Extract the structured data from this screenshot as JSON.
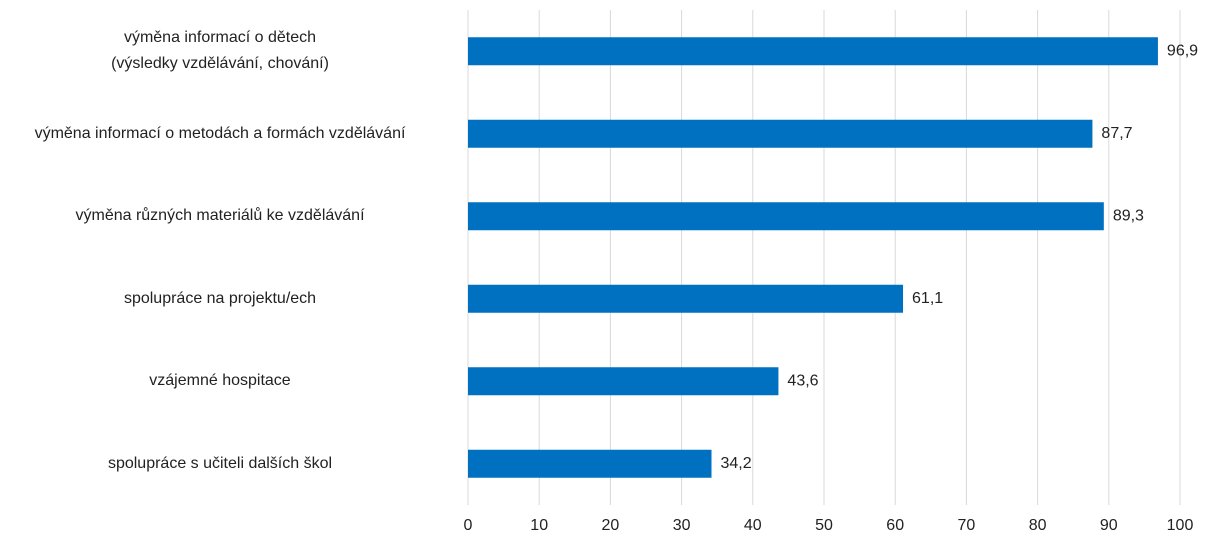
{
  "chart_data": {
    "type": "bar",
    "orientation": "horizontal",
    "categories": [
      "výměna informací o dětech\n(výsledky vzdělávání, chování)",
      "výměna informací o metodách a formách vzdělávání",
      "výměna různých materiálů ke vzdělávání",
      "spolupráce na projektu/ech",
      "vzájemné hospitace",
      "spolupráce s učiteli dalších škol"
    ],
    "values": [
      96.9,
      87.7,
      89.3,
      61.1,
      43.6,
      34.2
    ],
    "value_labels": [
      "96,9",
      "87,7",
      "89,3",
      "61,1",
      "43,6",
      "34,2"
    ],
    "color": "#0070c0",
    "xlim": [
      0,
      100
    ],
    "xticks": [
      0,
      10,
      20,
      30,
      40,
      50,
      60,
      70,
      80,
      90,
      100
    ],
    "grid": true
  }
}
